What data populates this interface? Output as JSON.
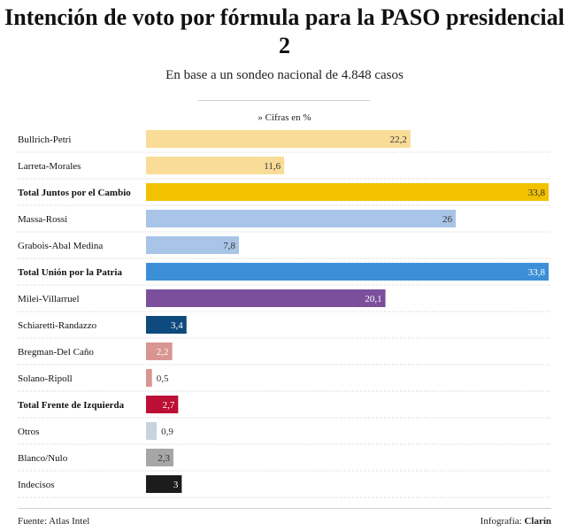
{
  "header": {
    "title": "Intención de voto por fórmula para la PASO presidencial 2",
    "subtitle": "En base a un sondeo nacional de 4.848 casos",
    "unit_note": "» Cifras en %"
  },
  "footer": {
    "source": "Fuente: Atlas Intel",
    "credit_prefix": "Infografía: ",
    "credit_brand": "Clarín"
  },
  "chart_data": {
    "type": "bar",
    "orientation": "horizontal",
    "title": "Intención de voto por fórmula para la PASO presidencial 2",
    "subtitle": "En base a un sondeo nacional de 4.848 casos",
    "xlim": [
      0,
      33.8
    ],
    "grid": false,
    "categories": [
      "Bullrich-Petri",
      "Larreta-Morales",
      "Total Juntos por el Cambio",
      "Massa-Rossi",
      "Grabois-Abal Medina",
      "Total Unión por la Patria",
      "Milei-Villarruel",
      "Schiaretti-Randazzo",
      "Bregman-Del Caño",
      "Solano-Ripoll",
      "Total Frente de Izquierda",
      "Otros",
      "Blanco/Nulo",
      "Indecisos"
    ],
    "values": [
      22.2,
      11.6,
      33.8,
      26,
      7.8,
      33.8,
      20.1,
      3.4,
      2.2,
      0.5,
      2.7,
      0.9,
      2.3,
      3
    ],
    "value_labels": [
      "22,2",
      "11,6",
      "33,8",
      "26",
      "7,8",
      "33,8",
      "20,1",
      "3,4",
      "2,2",
      "0,5",
      "2,7",
      "0,9",
      "2,3",
      "3"
    ],
    "bold_rows": [
      false,
      false,
      true,
      false,
      false,
      true,
      false,
      false,
      false,
      false,
      true,
      false,
      false,
      false
    ],
    "colors": [
      "#f9dc98",
      "#f9dc98",
      "#f2c200",
      "#a8c4e6",
      "#a8c4e6",
      "#3c8fd6",
      "#7b4f9c",
      "#0e4a7e",
      "#d99590",
      "#d99590",
      "#bd0f35",
      "#c8d3de",
      "#a6a6a6",
      "#1c1c1c"
    ],
    "label_colors": [
      "#333333",
      "#333333",
      "#333333",
      "#333333",
      "#333333",
      "#ffffff",
      "#ffffff",
      "#ffffff",
      "#ffffff",
      "#333333",
      "#ffffff",
      "#333333",
      "#333333",
      "#ffffff"
    ]
  }
}
